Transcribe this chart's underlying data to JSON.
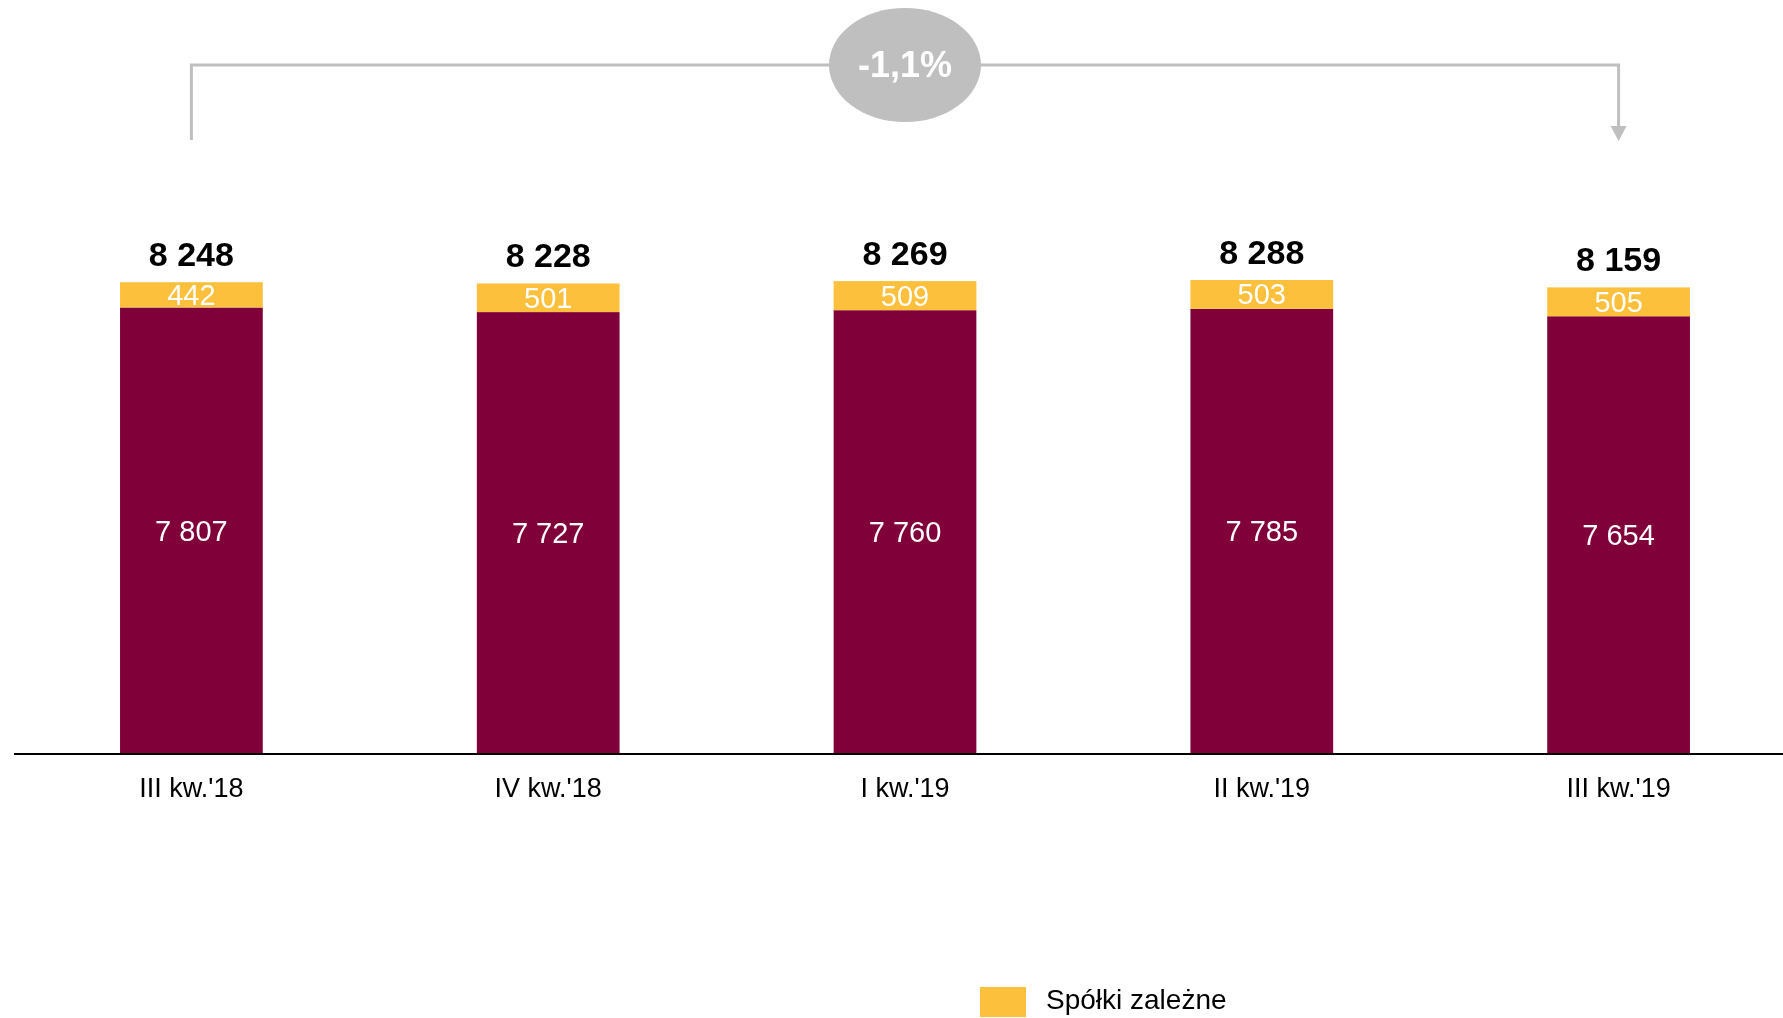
{
  "chart_data": {
    "type": "bar",
    "stacked": true,
    "data_labels": true,
    "legend": "bottom",
    "categories": [
      "III kw.'18",
      "IV kw.'18",
      "I kw.'19",
      "II kw.'19",
      "III kw.'19"
    ],
    "series": [
      {
        "color": "#80003a",
        "values": [
          7807,
          7727,
          7760,
          7785,
          7654
        ]
      },
      {
        "name": "Spółki zależne",
        "color": "#fcc03c",
        "values": [
          442,
          501,
          509,
          503,
          505
        ]
      }
    ],
    "totals": [
      "8 248",
      "8 228",
      "8 269",
      "8 288",
      "8 159"
    ],
    "annotations": [
      "-1,1%"
    ]
  }
}
